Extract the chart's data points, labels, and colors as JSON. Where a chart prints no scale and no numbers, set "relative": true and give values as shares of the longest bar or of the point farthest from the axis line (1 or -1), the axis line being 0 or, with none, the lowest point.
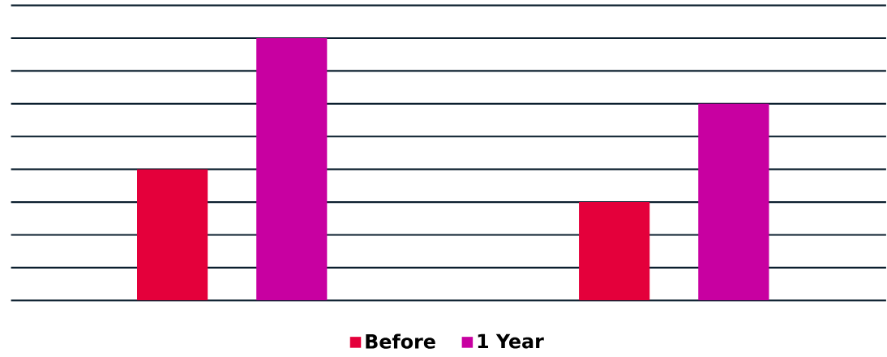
{
  "chart_data": {
    "type": "bar",
    "relative": true,
    "categories": [
      null,
      null
    ],
    "series": [
      {
        "name": "Before",
        "color": "#e4003b",
        "values": [
          0.5,
          0.375
        ]
      },
      {
        "name": "1 Year",
        "color": "#c800a1",
        "values": [
          1,
          0.75
        ]
      }
    ],
    "grid": "y",
    "legend": "bottom"
  }
}
